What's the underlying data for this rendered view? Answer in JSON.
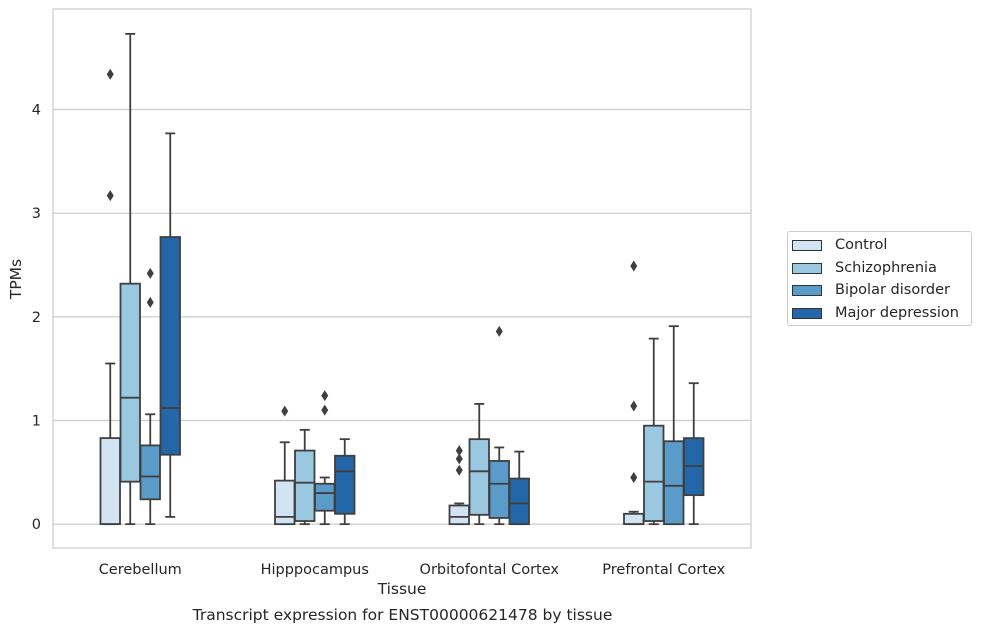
{
  "caption": "Transcript expression for ENST00000621478 by tissue",
  "chart_data": {
    "type": "boxplot",
    "xlabel": "Tissue",
    "ylabel": "TPMs",
    "ylim": [
      -0.23,
      4.97
    ],
    "yticks": [
      0,
      1,
      2,
      3,
      4
    ],
    "grid": "horizontal",
    "legend_position": "right",
    "categories": [
      "Cerebellum",
      "Hipppocampus",
      "Orbitofontal Cortex",
      "Prefrontal Cortex"
    ],
    "series": [
      {
        "name": "Control",
        "color": "#d2e3f3",
        "boxes": [
          {
            "whislo": 0,
            "q1": 0,
            "med": 0,
            "q3": 0.83,
            "whishi": 1.55,
            "fliers": [
              3.17,
              4.34
            ]
          },
          {
            "whislo": 0,
            "q1": 0,
            "med": 0.07,
            "q3": 0.42,
            "whishi": 0.79,
            "fliers": [
              1.09
            ]
          },
          {
            "whislo": 0,
            "q1": 0,
            "med": 0.07,
            "q3": 0.18,
            "whishi": 0.2,
            "fliers": [
              0.52,
              0.63,
              0.71
            ]
          },
          {
            "whislo": 0,
            "q1": 0,
            "med": 0,
            "q3": 0.1,
            "whishi": 0.12,
            "fliers": [
              0.45,
              1.14,
              2.49
            ]
          }
        ]
      },
      {
        "name": "Schizophrenia",
        "color": "#9ac8e0",
        "boxes": [
          {
            "whislo": 0,
            "q1": 0.41,
            "med": 1.22,
            "q3": 2.32,
            "whishi": 4.73,
            "fliers": []
          },
          {
            "whislo": 0,
            "q1": 0.03,
            "med": 0.4,
            "q3": 0.71,
            "whishi": 0.91,
            "fliers": []
          },
          {
            "whislo": 0,
            "q1": 0.09,
            "med": 0.51,
            "q3": 0.82,
            "whishi": 1.16,
            "fliers": []
          },
          {
            "whislo": 0,
            "q1": 0.03,
            "med": 0.41,
            "q3": 0.95,
            "whishi": 1.79,
            "fliers": []
          }
        ]
      },
      {
        "name": "Bipolar disorder",
        "color": "#5a9bc9",
        "boxes": [
          {
            "whislo": 0,
            "q1": 0.24,
            "med": 0.46,
            "q3": 0.76,
            "whishi": 1.06,
            "fliers": [
              2.14,
              2.42
            ]
          },
          {
            "whislo": 0,
            "q1": 0.13,
            "med": 0.3,
            "q3": 0.39,
            "whishi": 0.45,
            "fliers": [
              1.1,
              1.24
            ]
          },
          {
            "whislo": 0,
            "q1": 0.06,
            "med": 0.39,
            "q3": 0.61,
            "whishi": 0.74,
            "fliers": [
              1.86
            ]
          },
          {
            "whislo": 0,
            "q1": 0,
            "med": 0.37,
            "q3": 0.8,
            "whishi": 1.91,
            "fliers": []
          }
        ]
      },
      {
        "name": "Major depression",
        "color": "#2367a9",
        "boxes": [
          {
            "whislo": 0.07,
            "q1": 0.67,
            "med": 1.12,
            "q3": 2.77,
            "whishi": 3.77,
            "fliers": []
          },
          {
            "whislo": 0,
            "q1": 0.1,
            "med": 0.51,
            "q3": 0.66,
            "whishi": 0.82,
            "fliers": []
          },
          {
            "whislo": 0,
            "q1": 0,
            "med": 0.2,
            "q3": 0.44,
            "whishi": 0.7,
            "fliers": []
          },
          {
            "whislo": 0,
            "q1": 0.28,
            "med": 0.56,
            "q3": 0.83,
            "whishi": 1.36,
            "fliers": []
          }
        ]
      }
    ]
  }
}
